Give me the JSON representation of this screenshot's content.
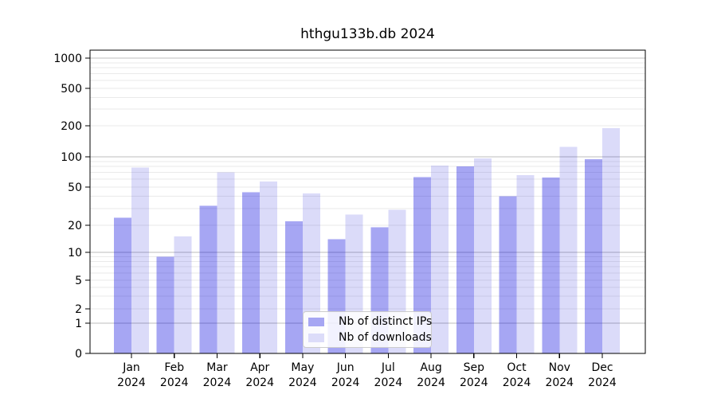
{
  "chart_data": {
    "type": "bar",
    "title": "hthgu133b.db 2024",
    "categories": [
      "Jan",
      "Feb",
      "Mar",
      "Apr",
      "May",
      "Jun",
      "Jul",
      "Aug",
      "Sep",
      "Oct",
      "Nov",
      "Dec"
    ],
    "year_label": "2024",
    "series": [
      {
        "name": "Nb of distinct IPs",
        "color": "#a6a6f3",
        "fill": "rgba(0,0,220,0.35)",
        "values": [
          24,
          9,
          32,
          44,
          22,
          14,
          19,
          63,
          80,
          40,
          62,
          95
        ]
      },
      {
        "name": "Nb of downloads",
        "color": "#dcdcf9",
        "fill": "rgba(0,0,210,0.14)",
        "values": [
          78,
          15,
          70,
          57,
          43,
          26,
          29,
          82,
          96,
          66,
          125,
          190
        ]
      }
    ],
    "yscale": "symlog",
    "ylim": [
      0,
      1000
    ],
    "yticks": [
      0,
      1,
      2,
      5,
      10,
      20,
      50,
      100,
      200,
      500,
      1000
    ],
    "grid": true,
    "legend_position": "lower center",
    "grid_major_color": "#bdbdbd",
    "grid_minor_color": "#eaeaea",
    "axis_color": "#000000"
  }
}
